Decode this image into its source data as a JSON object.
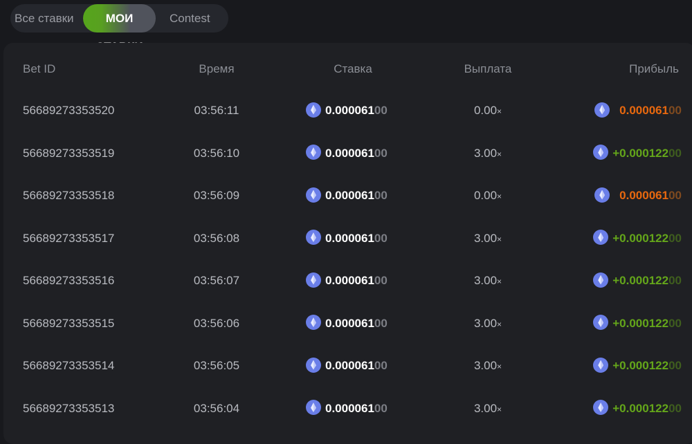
{
  "tabs": [
    {
      "label": "Все ставки",
      "active": false
    },
    {
      "label": "МОИ СТАВКИ",
      "active": true
    },
    {
      "label": "Contest",
      "active": false
    }
  ],
  "table": {
    "headers": {
      "id": "Bet ID",
      "time": "Время",
      "bet": "Ставка",
      "payout": "Выплата",
      "profit": "Прибыль"
    },
    "rows": [
      {
        "id": "56689273353520",
        "time": "03:56:11",
        "bet_main": "0.000061",
        "bet_dim": "00",
        "payout": "0.00",
        "payout_suffix": "×",
        "profit_main": "0.000061",
        "profit_dim": "00",
        "result": "loss"
      },
      {
        "id": "56689273353519",
        "time": "03:56:10",
        "bet_main": "0.000061",
        "bet_dim": "00",
        "payout": "3.00",
        "payout_suffix": "×",
        "profit_main": "+0.000122",
        "profit_dim": "00",
        "result": "win"
      },
      {
        "id": "56689273353518",
        "time": "03:56:09",
        "bet_main": "0.000061",
        "bet_dim": "00",
        "payout": "0.00",
        "payout_suffix": "×",
        "profit_main": "0.000061",
        "profit_dim": "00",
        "result": "loss"
      },
      {
        "id": "56689273353517",
        "time": "03:56:08",
        "bet_main": "0.000061",
        "bet_dim": "00",
        "payout": "3.00",
        "payout_suffix": "×",
        "profit_main": "+0.000122",
        "profit_dim": "00",
        "result": "win"
      },
      {
        "id": "56689273353516",
        "time": "03:56:07",
        "bet_main": "0.000061",
        "bet_dim": "00",
        "payout": "3.00",
        "payout_suffix": "×",
        "profit_main": "+0.000122",
        "profit_dim": "00",
        "result": "win"
      },
      {
        "id": "56689273353515",
        "time": "03:56:06",
        "bet_main": "0.000061",
        "bet_dim": "00",
        "payout": "3.00",
        "payout_suffix": "×",
        "profit_main": "+0.000122",
        "profit_dim": "00",
        "result": "win"
      },
      {
        "id": "56689273353514",
        "time": "03:56:05",
        "bet_main": "0.000061",
        "bet_dim": "00",
        "payout": "3.00",
        "payout_suffix": "×",
        "profit_main": "+0.000122",
        "profit_dim": "00",
        "result": "win"
      },
      {
        "id": "56689273353513",
        "time": "03:56:04",
        "bet_main": "0.000061",
        "bet_dim": "00",
        "payout": "3.00",
        "payout_suffix": "×",
        "profit_main": "+0.000122",
        "profit_dim": "00",
        "result": "win"
      }
    ]
  },
  "colors": {
    "win": "#64a61a",
    "loss": "#e8680e",
    "accent": "#56a51c",
    "eth_icon": "#6a7ee8"
  },
  "icons": {
    "currency": "ethereum-icon"
  }
}
